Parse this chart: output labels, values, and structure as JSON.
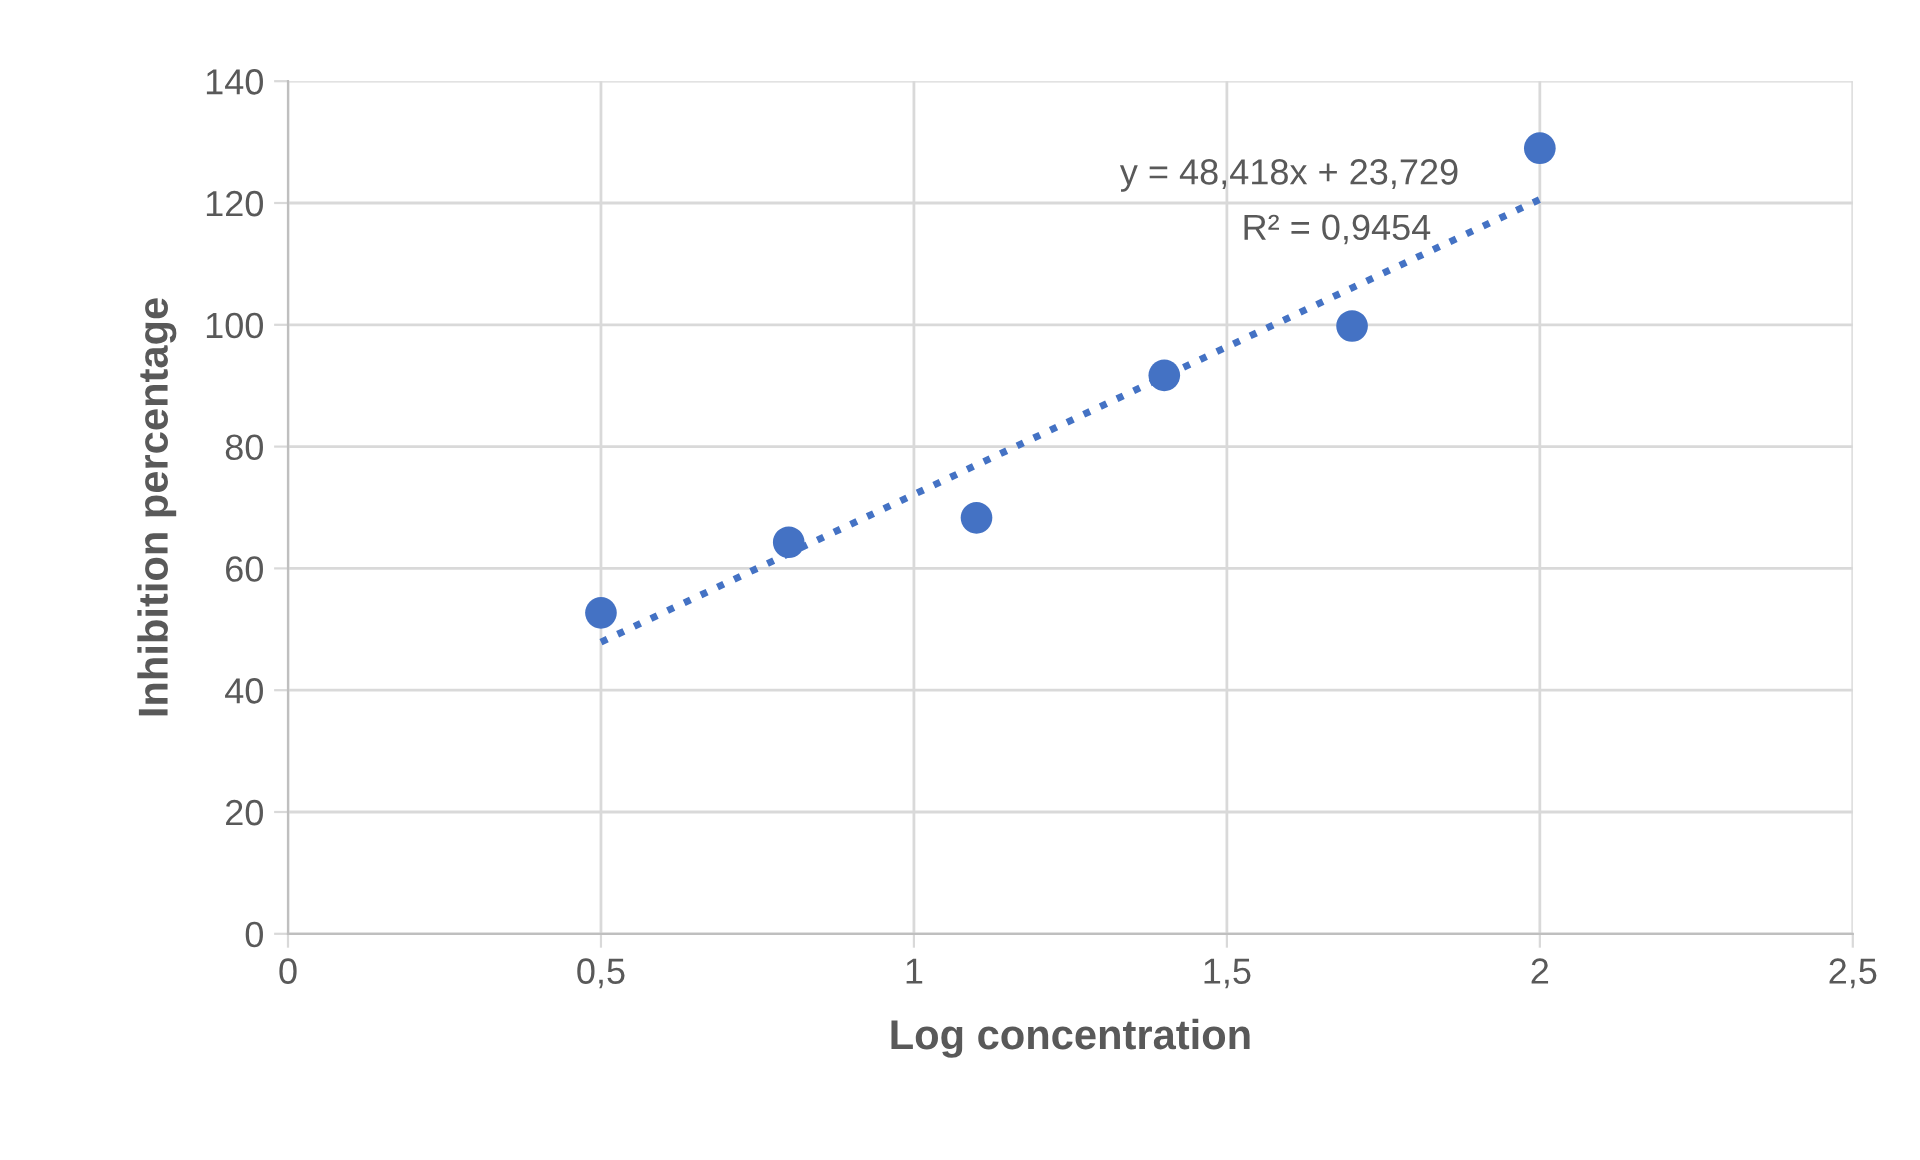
{
  "chart_data": {
    "type": "scatter",
    "xlabel": "Log concentration",
    "ylabel": "Inhibition percentage",
    "x": [
      0.5,
      0.8,
      1.1,
      1.4,
      1.7,
      2.0
    ],
    "series": [
      {
        "color": "#4472c4",
        "values": [
          52.7,
          64.3,
          68.3,
          91.7,
          99.8,
          129.0
        ],
        "marker": "circle"
      },
      {
        "type": "line",
        "color": "#4472c4",
        "x": [
          0.5,
          2.0
        ],
        "values": [
          47.9,
          120.6
        ],
        "line_style": "dotted",
        "marker": "none"
      }
    ],
    "annotations": [
      "y = 48,418x + 23,729",
      "R² = 0,9454"
    ],
    "xlim": [
      0,
      2.5
    ],
    "xticks": [
      0,
      {
        "value": 0.5,
        "label": "0,5"
      },
      1,
      {
        "value": 1.5,
        "label": "1,5"
      },
      2,
      {
        "value": 2.5,
        "label": "2,5"
      }
    ],
    "ylim": [
      0,
      140
    ],
    "yticks": [
      0,
      20,
      40,
      60,
      80,
      100,
      120,
      140
    ],
    "grid": true,
    "legend": false
  }
}
